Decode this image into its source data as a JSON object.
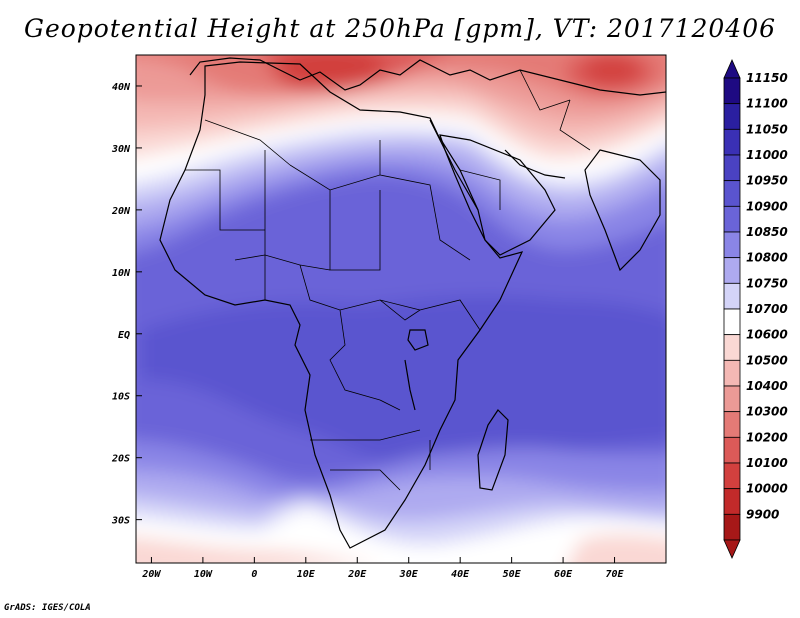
{
  "title": "Geopotential Height at 250hPa [gpm], VT: 2017120406",
  "credit": "GrADS: IGES/COLA",
  "map": {
    "lon_range": [
      -23,
      80
    ],
    "lat_range": [
      -37,
      45
    ],
    "x_ticks": [
      {
        "lon": -20,
        "label": "20W"
      },
      {
        "lon": -10,
        "label": "10W"
      },
      {
        "lon": 0,
        "label": "0"
      },
      {
        "lon": 10,
        "label": "10E"
      },
      {
        "lon": 20,
        "label": "20E"
      },
      {
        "lon": 30,
        "label": "30E"
      },
      {
        "lon": 40,
        "label": "40E"
      },
      {
        "lon": 50,
        "label": "50E"
      },
      {
        "lon": 60,
        "label": "60E"
      },
      {
        "lon": 70,
        "label": "70E"
      }
    ],
    "y_ticks": [
      {
        "lat": 40,
        "label": "40N"
      },
      {
        "lat": 30,
        "label": "30N"
      },
      {
        "lat": 20,
        "label": "20N"
      },
      {
        "lat": 10,
        "label": "10N"
      },
      {
        "lat": 0,
        "label": "EQ"
      },
      {
        "lat": -10,
        "label": "10S"
      },
      {
        "lat": -20,
        "label": "20S"
      },
      {
        "lat": -30,
        "label": "30S"
      }
    ]
  },
  "colorbar": {
    "levels": [
      {
        "label": "11150",
        "color": "#1e0a82"
      },
      {
        "label": "11100",
        "color": "#2a1fa0"
      },
      {
        "label": "11050",
        "color": "#3a30b5"
      },
      {
        "label": "11000",
        "color": "#4a42c2"
      },
      {
        "label": "10950",
        "color": "#5a54cf"
      },
      {
        "label": "10900",
        "color": "#6a64d8"
      },
      {
        "label": "10850",
        "color": "#8a85e6"
      },
      {
        "label": "10800",
        "color": "#aeaaf0"
      },
      {
        "label": "10750",
        "color": "#d4d4f8"
      },
      {
        "label": "10700",
        "color": "#ffffff"
      },
      {
        "label": "10600",
        "color": "#fad8d4"
      },
      {
        "label": "10500",
        "color": "#f4b8b4"
      },
      {
        "label": "10400",
        "color": "#ec9a96"
      },
      {
        "label": "10300",
        "color": "#e47a76"
      },
      {
        "label": "10200",
        "color": "#dc5a58"
      },
      {
        "label": "10100",
        "color": "#d2403e"
      },
      {
        "label": "10000",
        "color": "#c22a2a"
      },
      {
        "label": "9900",
        "color": "#a61818"
      }
    ]
  }
}
